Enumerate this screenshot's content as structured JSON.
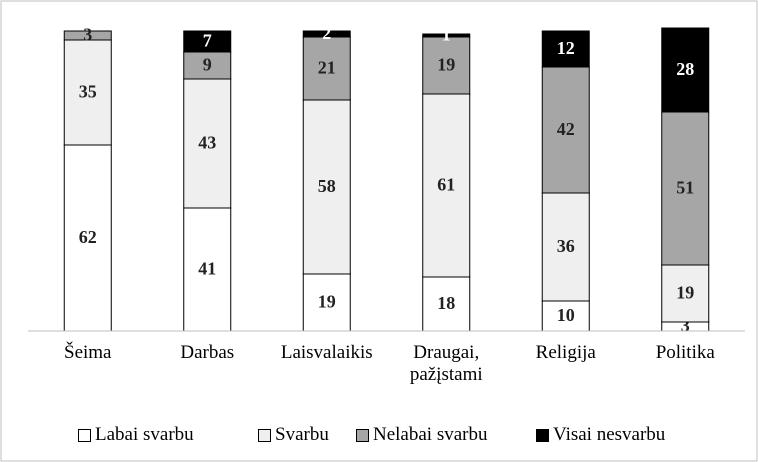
{
  "chart_data": {
    "type": "stacked_bar",
    "categories": [
      "Šeima",
      "Darbas",
      "Laisvalaikis",
      "Draugai, pažįstami",
      "Religija",
      "Politika"
    ],
    "series": [
      {
        "name": "Labai svarbu",
        "color": "#ffffff",
        "values": [
          62,
          41,
          19,
          18,
          10,
          3
        ]
      },
      {
        "name": "Svarbu",
        "color": "#efefef",
        "values": [
          35,
          43,
          58,
          61,
          36,
          19
        ]
      },
      {
        "name": "Nelabai svarbu",
        "color": "#a6a6a6",
        "values": [
          3,
          9,
          21,
          19,
          42,
          51
        ]
      },
      {
        "name": "Visai nesvarbu",
        "color": "#000000",
        "values": [
          0,
          7,
          2,
          1,
          12,
          28
        ]
      }
    ],
    "ylim": [
      0,
      100
    ],
    "legend": "bottom"
  }
}
